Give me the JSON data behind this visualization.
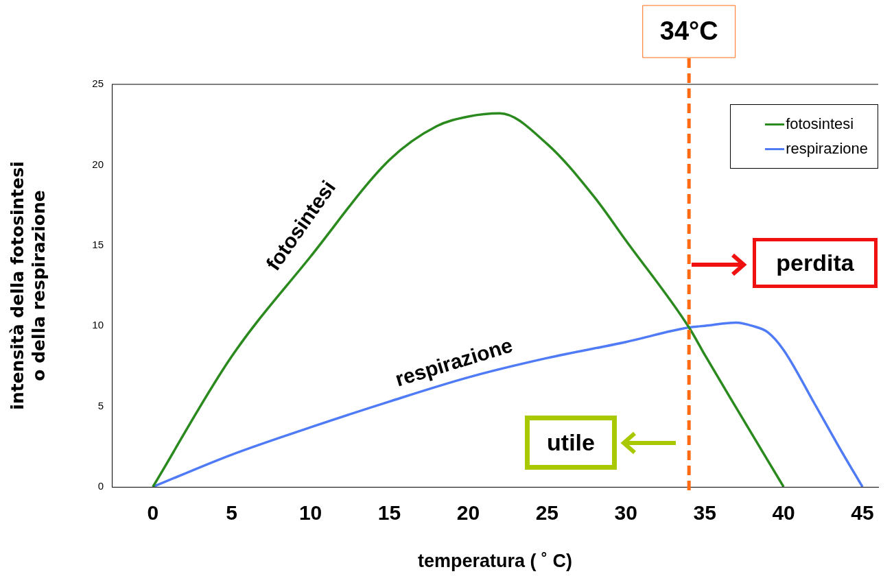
{
  "chart_data": {
    "type": "line",
    "xlabel": "temperatura ( ˚ C)",
    "ylabel": "intensità della fotosintesi\no della respirazione",
    "xlim": [
      -2.6,
      46
    ],
    "ylim": [
      0,
      25
    ],
    "xticks": [
      0,
      5,
      10,
      15,
      20,
      25,
      30,
      35,
      40,
      45
    ],
    "yticks": [
      0,
      5,
      10,
      15,
      20,
      25
    ],
    "grid": false,
    "legend": "top right",
    "marker": "none",
    "series": [
      {
        "name": "fotosintesi",
        "color": "#2a8a1e",
        "x": [
          0,
          5,
          10,
          15,
          18,
          20,
          22,
          25,
          28,
          30,
          34,
          35,
          37,
          40
        ],
        "values": [
          0,
          8.1,
          14.3,
          20.3,
          22.4,
          23.0,
          23.2,
          21.3,
          18.0,
          15.3,
          9.9,
          8.2,
          4.9,
          0
        ]
      },
      {
        "name": "respirazione",
        "color": "#4f7bf7",
        "x": [
          0,
          5,
          10,
          15,
          20,
          25,
          30,
          34,
          35,
          37,
          38,
          39,
          40,
          42,
          43.5,
          45
        ],
        "values": [
          0,
          2.0,
          3.7,
          5.3,
          6.8,
          8.0,
          9.0,
          9.9,
          10.0,
          10.2,
          10.0,
          9.6,
          8.5,
          5.1,
          2.5,
          0
        ]
      }
    ],
    "ref_lines": [
      {
        "axis": "x",
        "value": 34,
        "label": "34°C",
        "color": "#ff6a13",
        "line_style": "dashed"
      }
    ],
    "annotations": [
      "fotosintesi",
      "respirazione",
      "perdita",
      "utile"
    ]
  }
}
